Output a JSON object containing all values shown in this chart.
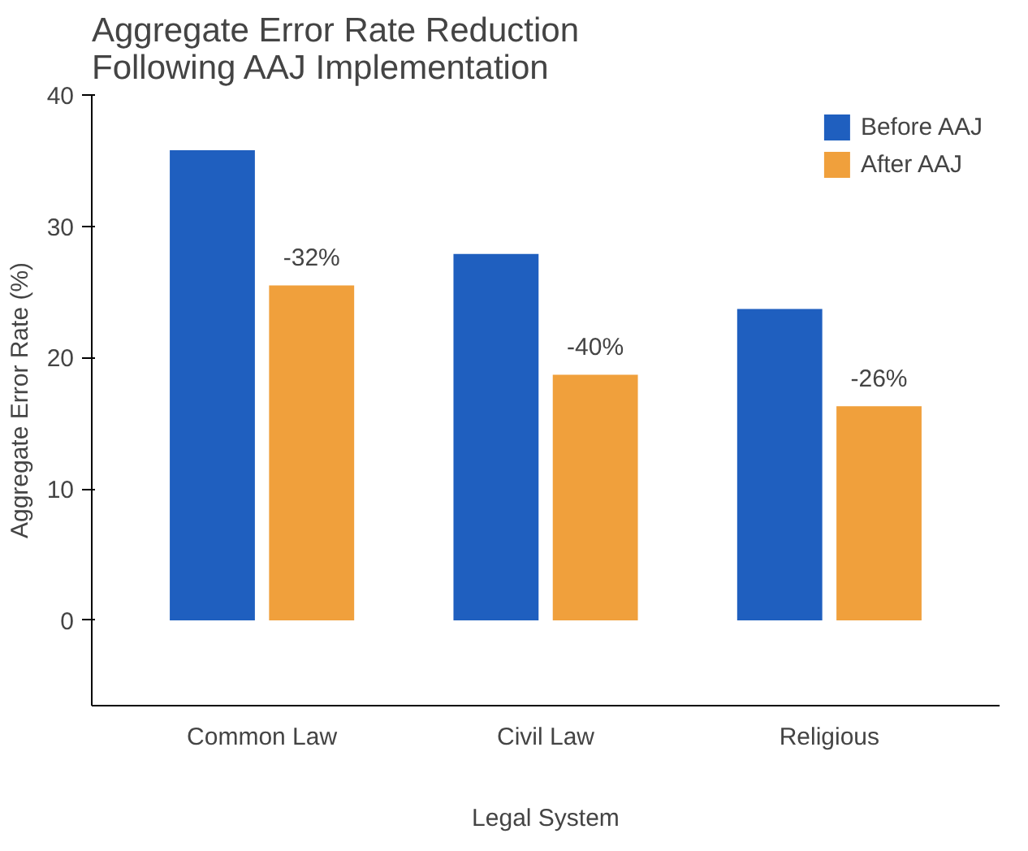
{
  "chart_data": {
    "type": "bar",
    "title": "Aggregate Error Rate Reduction\nFollowing AAJ Implementation",
    "xlabel": "Legal System",
    "ylabel": "Aggregate Error Rate (%)",
    "categories": [
      "Common Law",
      "Civil Law",
      "Religious"
    ],
    "series": [
      {
        "name": "Before AAJ",
        "color": "#1f5fbf",
        "values": [
          35.8,
          27.9,
          23.7
        ]
      },
      {
        "name": "After AAJ",
        "color": "#f0a03c",
        "values": [
          25.5,
          18.7,
          16.3
        ]
      }
    ],
    "ylim": [
      -6.5,
      40
    ],
    "yticks": [
      0,
      10,
      20,
      30,
      40
    ],
    "grid": false,
    "legend": "top right",
    "annotations": [
      {
        "text": "-32%",
        "x": "Common Law",
        "y": 25.5
      },
      {
        "text": "-40%",
        "x": "Civil Law",
        "y": 18.7
      },
      {
        "text": "-26%",
        "x": "Religious",
        "y": 16.3
      }
    ]
  }
}
